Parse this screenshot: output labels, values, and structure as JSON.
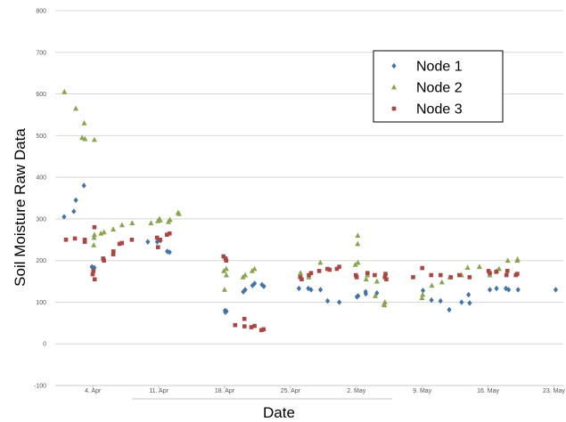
{
  "chart_data": {
    "type": "scatter",
    "title": "",
    "xlabel": "Date",
    "ylabel": "Soil Moisture Raw Data",
    "xlim": [
      "2014-03-31",
      "2014-05-24"
    ],
    "ylim": [
      -100,
      800
    ],
    "y_ticks": [
      -100,
      0,
      100,
      200,
      300,
      400,
      500,
      600,
      700,
      800
    ],
    "x_ticks": [
      {
        "date": "2014-04-04",
        "label": "4. Apr"
      },
      {
        "date": "2014-04-11",
        "label": "11. Apr"
      },
      {
        "date": "2014-04-18",
        "label": "18. Apr"
      },
      {
        "date": "2014-04-25",
        "label": "25. Apr"
      },
      {
        "date": "2014-05-02",
        "label": "2. May"
      },
      {
        "date": "2014-05-09",
        "label": "9. May"
      },
      {
        "date": "2014-05-16",
        "label": "16. May"
      },
      {
        "date": "2014-05-23",
        "label": "23. May"
      }
    ],
    "grid": "horizontal",
    "legend_position": "top-right",
    "series": [
      {
        "name": "Node 1",
        "color": "#4572A7",
        "marker": "diamond",
        "points": [
          [
            "2014-04-01",
            305
          ],
          [
            "2014-04-02",
            345
          ],
          [
            "2014-04-02",
            318
          ],
          [
            "2014-04-03",
            380
          ],
          [
            "2014-04-04",
            183
          ],
          [
            "2014-04-04",
            180
          ],
          [
            "2014-04-04",
            185
          ],
          [
            "2014-04-10",
            245
          ],
          [
            "2014-04-11",
            245
          ],
          [
            "2014-04-11",
            248
          ],
          [
            "2014-04-12",
            220
          ],
          [
            "2014-04-12",
            222
          ],
          [
            "2014-04-18",
            78
          ],
          [
            "2014-04-18",
            80
          ],
          [
            "2014-04-18",
            76
          ],
          [
            "2014-04-20",
            125
          ],
          [
            "2014-04-20",
            130
          ],
          [
            "2014-04-21",
            145
          ],
          [
            "2014-04-21",
            140
          ],
          [
            "2014-04-22",
            142
          ],
          [
            "2014-04-22",
            138
          ],
          [
            "2014-04-26",
            133
          ],
          [
            "2014-04-27",
            133
          ],
          [
            "2014-04-27",
            130
          ],
          [
            "2014-04-28",
            130
          ],
          [
            "2014-04-29",
            103
          ],
          [
            "2014-04-30",
            100
          ],
          [
            "2014-05-02",
            115
          ],
          [
            "2014-05-02",
            113
          ],
          [
            "2014-05-03",
            120
          ],
          [
            "2014-05-03",
            125
          ],
          [
            "2014-05-04",
            122
          ],
          [
            "2014-05-09",
            128
          ],
          [
            "2014-05-10",
            105
          ],
          [
            "2014-05-11",
            103
          ],
          [
            "2014-05-12",
            82
          ],
          [
            "2014-05-13",
            100
          ],
          [
            "2014-05-14",
            98
          ],
          [
            "2014-05-14",
            118
          ],
          [
            "2014-05-16",
            130
          ],
          [
            "2014-05-17",
            133
          ],
          [
            "2014-05-18",
            133
          ],
          [
            "2014-05-18",
            130
          ],
          [
            "2014-05-19",
            130
          ],
          [
            "2014-05-23",
            130
          ]
        ]
      },
      {
        "name": "Node 2",
        "color": "#89A54E",
        "marker": "triangle",
        "points": [
          [
            "2014-04-01",
            605
          ],
          [
            "2014-04-01",
            605
          ],
          [
            "2014-04-02",
            565
          ],
          [
            "2014-04-03",
            530
          ],
          [
            "2014-04-03",
            495
          ],
          [
            "2014-04-03",
            492
          ],
          [
            "2014-04-04",
            490
          ],
          [
            "2014-04-04",
            262
          ],
          [
            "2014-04-04",
            255
          ],
          [
            "2014-04-04",
            237
          ],
          [
            "2014-04-05",
            265
          ],
          [
            "2014-04-05",
            268
          ],
          [
            "2014-04-06",
            275
          ],
          [
            "2014-04-07",
            285
          ],
          [
            "2014-04-08",
            290
          ],
          [
            "2014-04-10",
            290
          ],
          [
            "2014-04-11",
            295
          ],
          [
            "2014-04-11",
            297
          ],
          [
            "2014-04-11",
            300
          ],
          [
            "2014-04-12",
            293
          ],
          [
            "2014-04-12",
            298
          ],
          [
            "2014-04-13",
            312
          ],
          [
            "2014-04-13",
            315
          ],
          [
            "2014-04-18",
            175
          ],
          [
            "2014-04-18",
            180
          ],
          [
            "2014-04-18",
            165
          ],
          [
            "2014-04-18",
            130
          ],
          [
            "2014-04-20",
            165
          ],
          [
            "2014-04-20",
            160
          ],
          [
            "2014-04-21",
            175
          ],
          [
            "2014-04-21",
            180
          ],
          [
            "2014-04-26",
            170
          ],
          [
            "2014-04-27",
            160
          ],
          [
            "2014-04-28",
            195
          ],
          [
            "2014-05-02",
            260
          ],
          [
            "2014-05-02",
            240
          ],
          [
            "2014-05-02",
            195
          ],
          [
            "2014-05-02",
            190
          ],
          [
            "2014-05-03",
            165
          ],
          [
            "2014-05-03",
            155
          ],
          [
            "2014-05-04",
            150
          ],
          [
            "2014-05-04",
            115
          ],
          [
            "2014-05-05",
            100
          ],
          [
            "2014-05-05",
            95
          ],
          [
            "2014-05-05",
            93
          ],
          [
            "2014-05-09",
            110
          ],
          [
            "2014-05-09",
            118
          ],
          [
            "2014-05-10",
            140
          ],
          [
            "2014-05-11",
            148
          ],
          [
            "2014-05-12",
            160
          ],
          [
            "2014-05-13",
            165
          ],
          [
            "2014-05-14",
            183
          ],
          [
            "2014-05-15",
            185
          ],
          [
            "2014-05-16",
            165
          ],
          [
            "2014-05-17",
            175
          ],
          [
            "2014-05-17",
            180
          ],
          [
            "2014-05-18",
            200
          ],
          [
            "2014-05-19",
            200
          ],
          [
            "2014-05-19",
            203
          ]
        ]
      },
      {
        "name": "Node 3",
        "color": "#AA4643",
        "marker": "square",
        "points": [
          [
            "2014-04-01",
            250
          ],
          [
            "2014-04-02",
            253
          ],
          [
            "2014-04-03",
            245
          ],
          [
            "2014-04-03",
            250
          ],
          [
            "2014-04-04",
            280
          ],
          [
            "2014-04-04",
            155
          ],
          [
            "2014-04-04",
            167
          ],
          [
            "2014-04-04",
            175
          ],
          [
            "2014-04-05",
            205
          ],
          [
            "2014-04-05",
            200
          ],
          [
            "2014-04-06",
            215
          ],
          [
            "2014-04-06",
            222
          ],
          [
            "2014-04-07",
            240
          ],
          [
            "2014-04-07",
            242
          ],
          [
            "2014-04-08",
            250
          ],
          [
            "2014-04-11",
            232
          ],
          [
            "2014-04-11",
            255
          ],
          [
            "2014-04-11",
            250
          ],
          [
            "2014-04-12",
            262
          ],
          [
            "2014-04-12",
            265
          ],
          [
            "2014-04-18",
            210
          ],
          [
            "2014-04-18",
            205
          ],
          [
            "2014-04-18",
            200
          ],
          [
            "2014-04-19",
            45
          ],
          [
            "2014-04-20",
            42
          ],
          [
            "2014-04-20",
            60
          ],
          [
            "2014-04-21",
            43
          ],
          [
            "2014-04-21",
            40
          ],
          [
            "2014-04-22",
            35
          ],
          [
            "2014-04-22",
            33
          ],
          [
            "2014-04-26",
            155
          ],
          [
            "2014-04-26",
            160
          ],
          [
            "2014-04-27",
            170
          ],
          [
            "2014-04-27",
            165
          ],
          [
            "2014-04-28",
            175
          ],
          [
            "2014-04-29",
            180
          ],
          [
            "2014-04-29",
            178
          ],
          [
            "2014-04-30",
            185
          ],
          [
            "2014-04-30",
            180
          ],
          [
            "2014-05-02",
            165
          ],
          [
            "2014-05-02",
            160
          ],
          [
            "2014-05-03",
            170
          ],
          [
            "2014-05-04",
            165
          ],
          [
            "2014-05-05",
            168
          ],
          [
            "2014-05-05",
            160
          ],
          [
            "2014-05-05",
            155
          ],
          [
            "2014-05-08",
            160
          ],
          [
            "2014-05-09",
            182
          ],
          [
            "2014-05-10",
            165
          ],
          [
            "2014-05-11",
            165
          ],
          [
            "2014-05-12",
            160
          ],
          [
            "2014-05-13",
            165
          ],
          [
            "2014-05-14",
            160
          ],
          [
            "2014-05-16",
            175
          ],
          [
            "2014-05-16",
            170
          ],
          [
            "2014-05-17",
            173
          ],
          [
            "2014-05-18",
            175
          ],
          [
            "2014-05-18",
            165
          ],
          [
            "2014-05-19",
            165
          ],
          [
            "2014-05-19",
            168
          ]
        ]
      }
    ]
  }
}
